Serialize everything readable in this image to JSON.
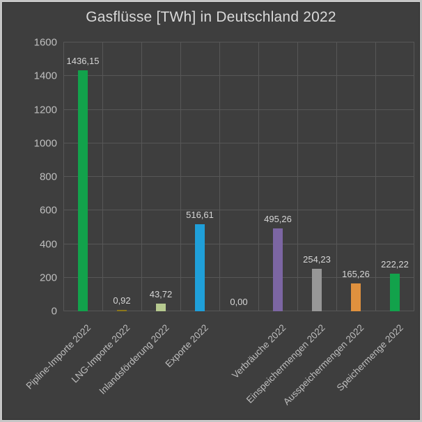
{
  "window": {
    "title": "Gasflüsse [TWh] in Deutschland 2022"
  },
  "colors": {
    "background": "#3e3e3e",
    "frame_border": "#c6c6c6",
    "grid": "#575757",
    "title_text": "#d9d9d9",
    "tick_text": "#bfbfbf",
    "value_text": "#d6d6d6"
  },
  "chart_data": {
    "type": "bar",
    "title": "Gasflüsse [TWh] in Deutschland 2022",
    "categories": [
      "Pipline-Importe 2022",
      "LNG-Importe 2022",
      "Inlandsförderung 2022",
      "Exporte 2022",
      "",
      "Verbräuche 2022",
      "Einspeichermengen 2022",
      "Ausspeichermengen 2022",
      "Speichermenge 2022"
    ],
    "values": [
      1436.15,
      0.92,
      43.72,
      516.61,
      0.0,
      495.26,
      254.23,
      165.26,
      222.22
    ],
    "value_labels": [
      "1436,15",
      "0,92",
      "43,72",
      "516,61",
      "0,00",
      "495,26",
      "254,23",
      "165,26",
      "222,22"
    ],
    "bar_colors": [
      "#12a24b",
      "#8d781c",
      "#b6c98f",
      "#1f9fd9",
      null,
      "#7c66a3",
      "#979797",
      "#e0913e",
      "#12a24b"
    ],
    "xlabel": "",
    "ylabel": "",
    "ylim": [
      0,
      1600
    ],
    "yticks": [
      "0",
      "200",
      "400",
      "600",
      "800",
      "1000",
      "1200",
      "1400",
      "1600"
    ],
    "ytick_step": 200,
    "grid": true,
    "legend": "none",
    "bar_label_position": "above"
  }
}
